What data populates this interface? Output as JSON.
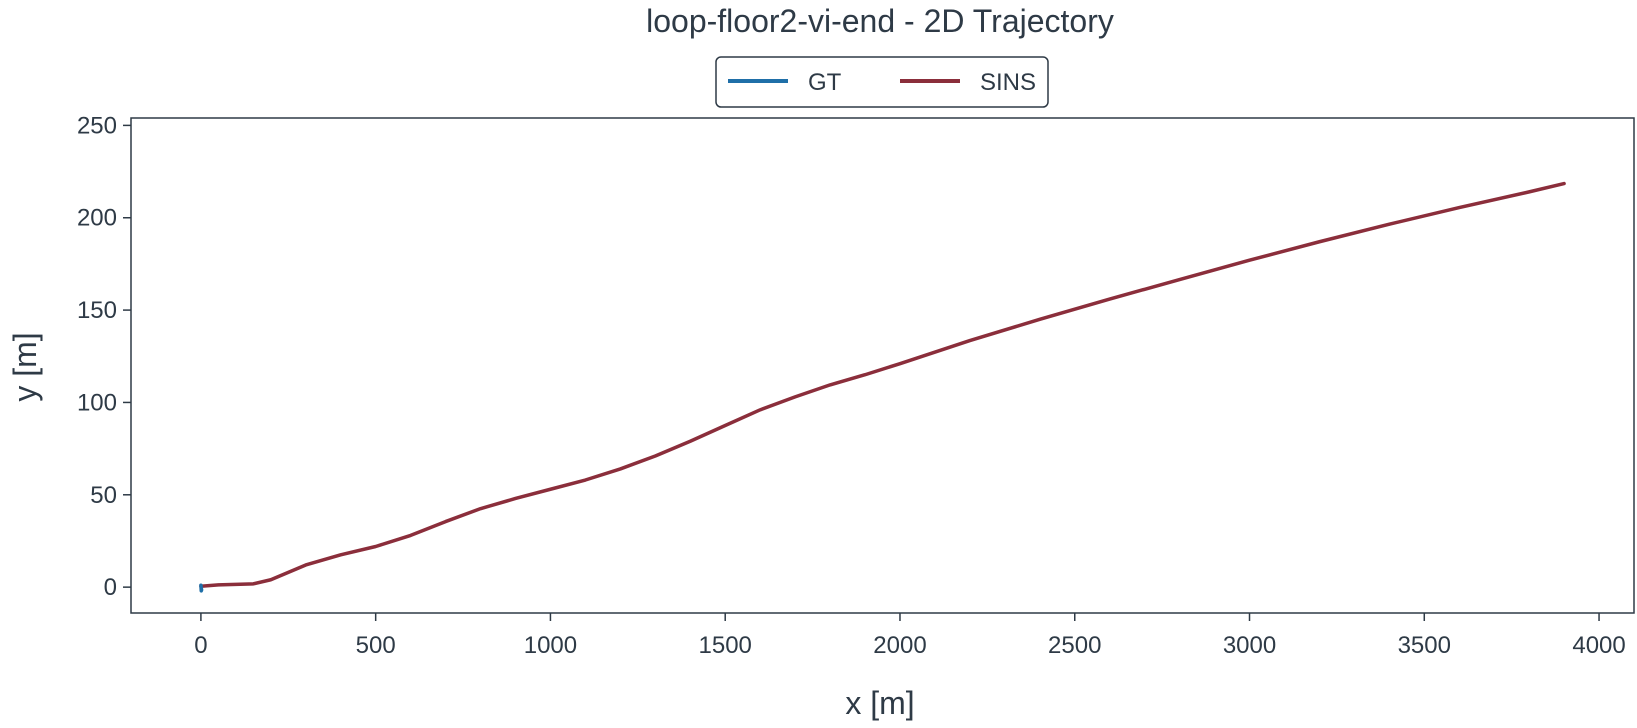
{
  "chart_data": {
    "type": "line",
    "title": "loop-floor2-vi-end - 2D Trajectory",
    "xlabel": "x [m]",
    "ylabel": "y [m]",
    "xlim": [
      -200,
      4100
    ],
    "ylim": [
      -14,
      254
    ],
    "xticks": [
      0,
      500,
      1000,
      1500,
      2000,
      2500,
      3000,
      3500,
      4000
    ],
    "yticks": [
      0,
      50,
      100,
      150,
      200,
      250
    ],
    "grid": false,
    "legend_position": "top-center",
    "series": [
      {
        "name": "GT",
        "color": "#1f6fa8",
        "x": [
          0,
          1,
          2,
          1,
          0
        ],
        "y": [
          0.5,
          -0.5,
          -1.5,
          -2,
          1
        ]
      },
      {
        "name": "SINS",
        "color": "#8b2e3b",
        "x": [
          0,
          50,
          100,
          150,
          200,
          250,
          300,
          400,
          500,
          600,
          700,
          800,
          900,
          1000,
          1100,
          1200,
          1300,
          1400,
          1500,
          1600,
          1700,
          1800,
          1900,
          2000,
          2200,
          2400,
          2600,
          2800,
          3000,
          3200,
          3400,
          3600,
          3800,
          3900
        ],
        "y": [
          0.5,
          1.2,
          1.5,
          1.8,
          4,
          8,
          12,
          17.5,
          22,
          28,
          35.5,
          42.5,
          48,
          53,
          58,
          64,
          71,
          79,
          87.5,
          96,
          103,
          109.5,
          115,
          121,
          133.5,
          145,
          156,
          166.5,
          177,
          187,
          196.5,
          205.5,
          214,
          218.5
        ]
      }
    ]
  }
}
